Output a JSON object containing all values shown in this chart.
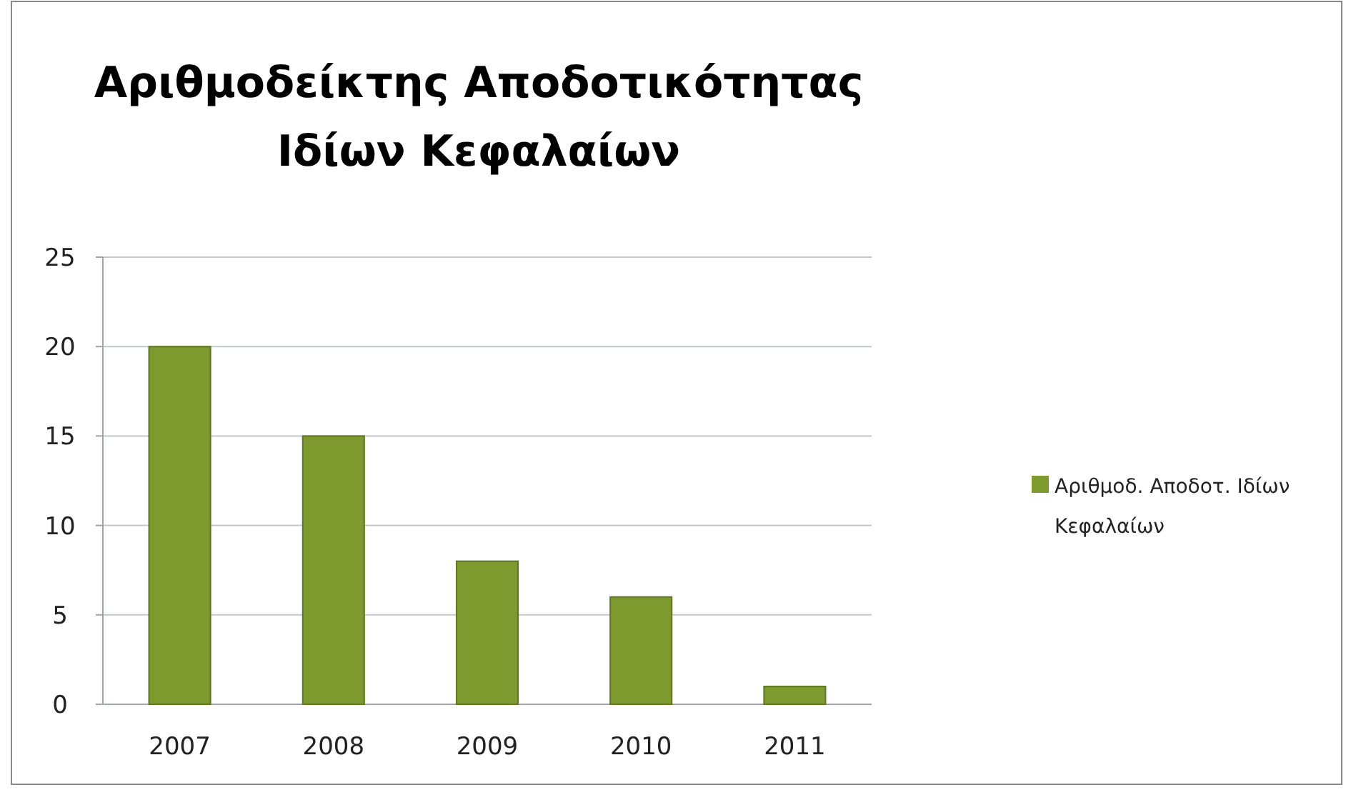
{
  "chart_data": {
    "type": "bar",
    "title": "Αριθμοδείκτης Αποδοτικότητας Ιδίων Κεφαλαίων",
    "categories": [
      "2007",
      "2008",
      "2009",
      "2010",
      "2011"
    ],
    "series": [
      {
        "name": "Αριθμοδ. Αποδοτ. Ιδίων Κεφαλαίων",
        "color": "#7e9a2e",
        "values": [
          20,
          15,
          8,
          6,
          1
        ]
      }
    ],
    "ylim": [
      0,
      25
    ],
    "yticks": [
      0,
      5,
      10,
      15,
      20,
      25
    ],
    "grid": "y",
    "legend": "right"
  }
}
